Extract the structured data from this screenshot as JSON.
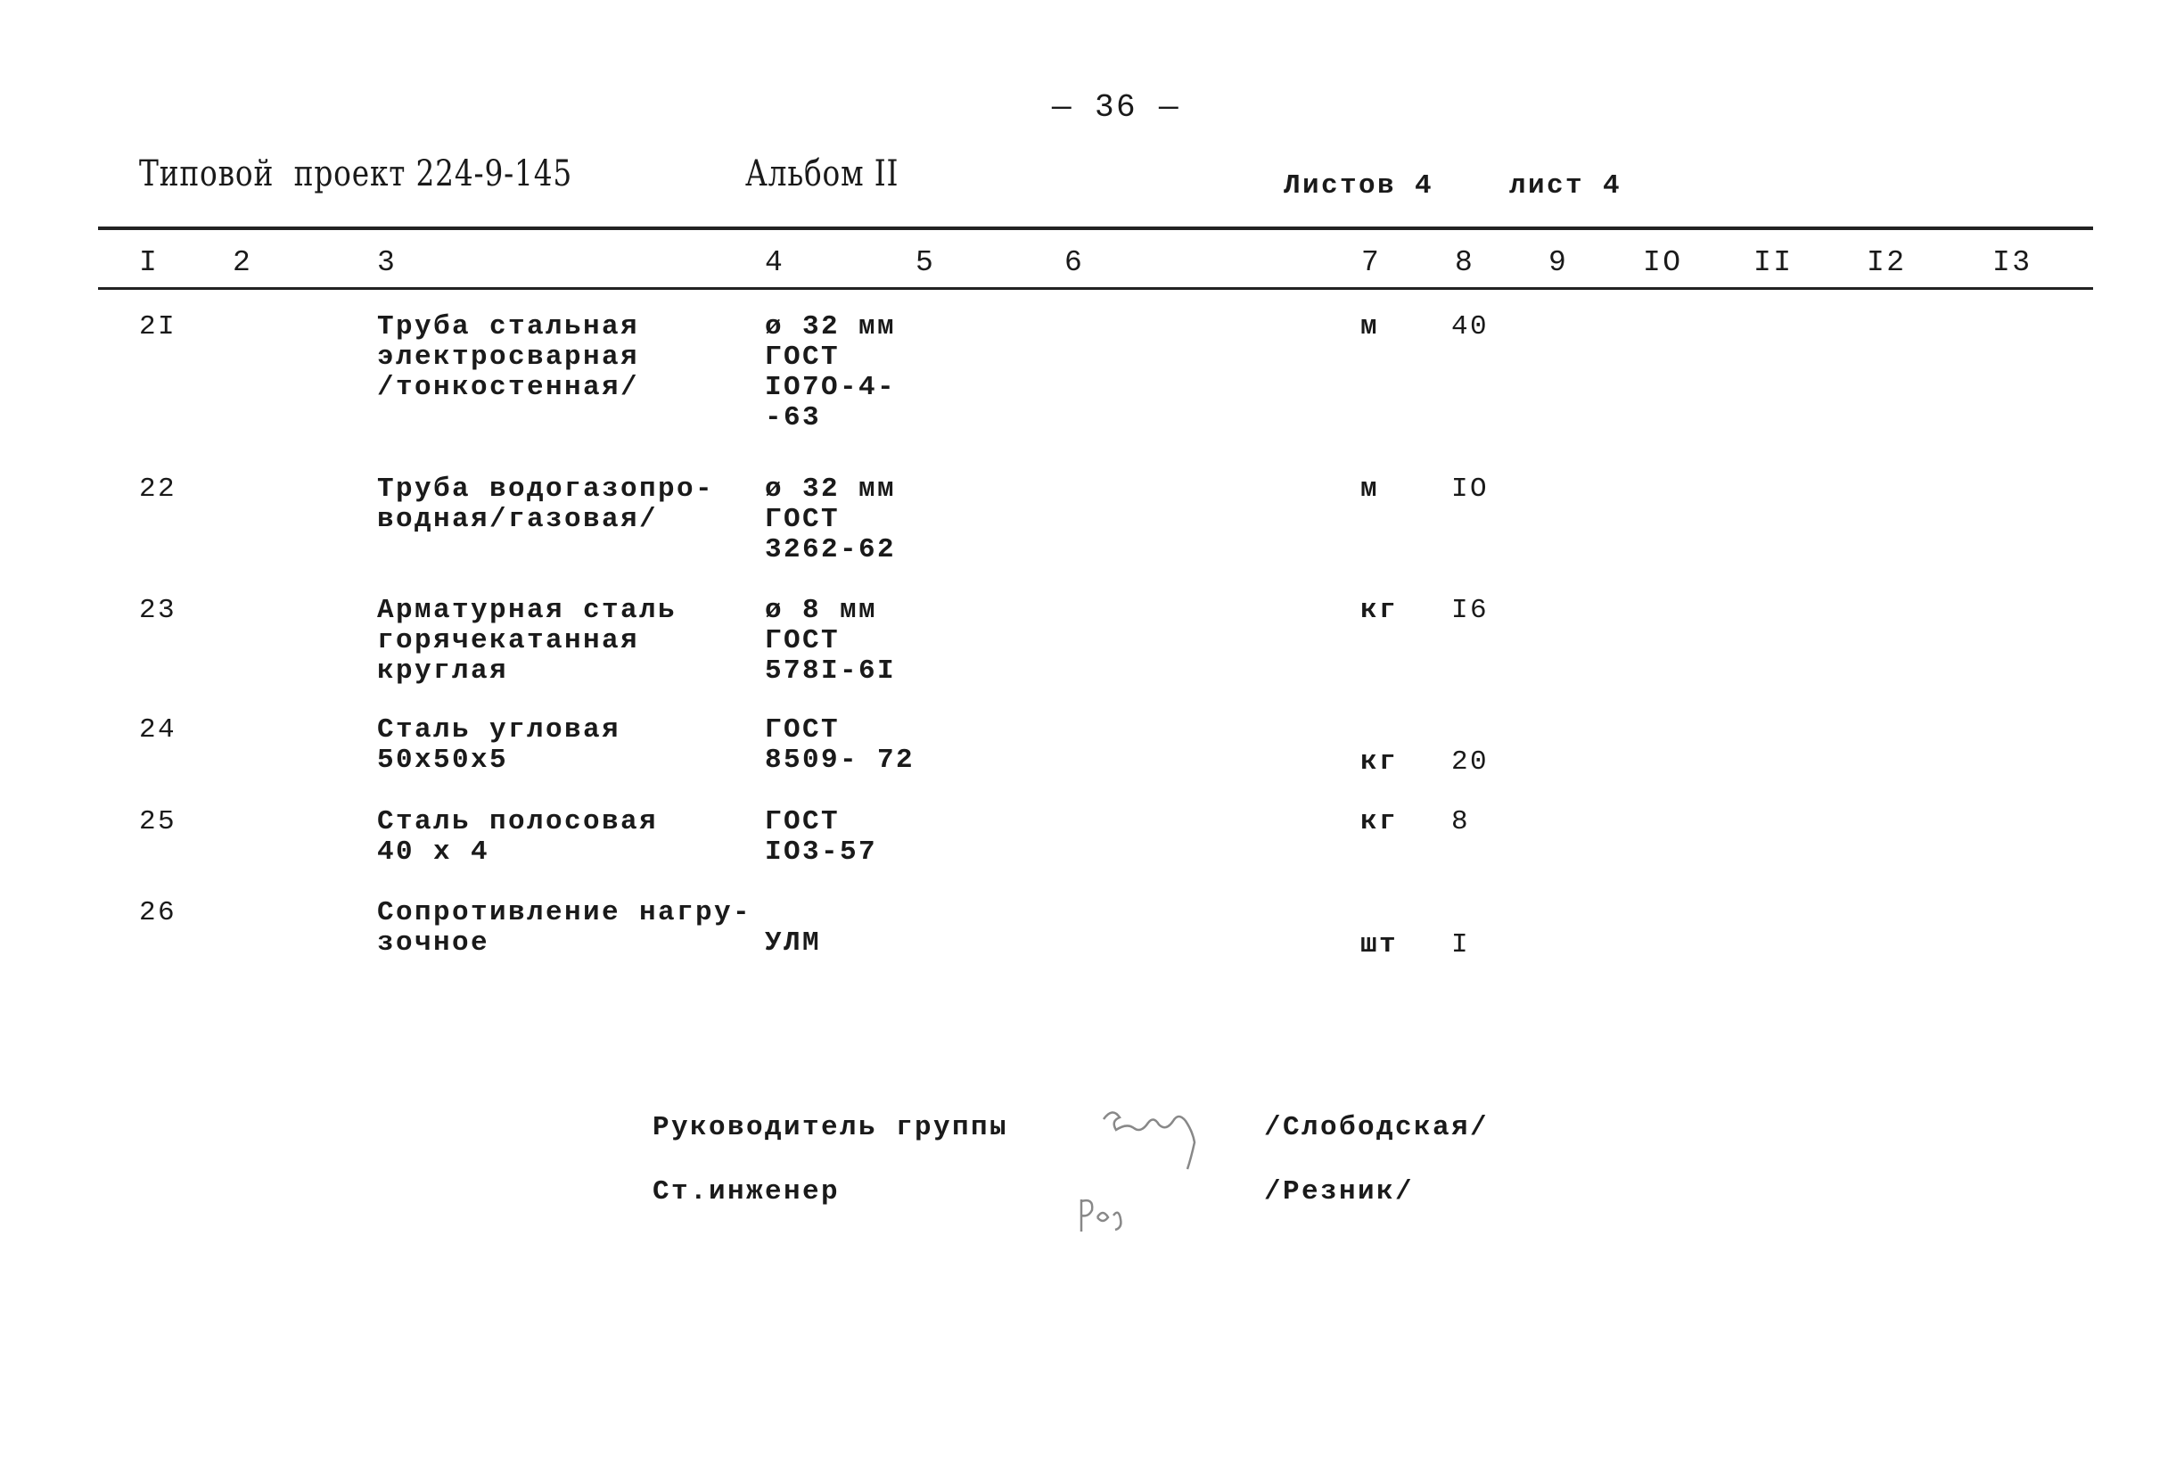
{
  "page_number": "— 36 —",
  "header": {
    "project": "Типовой  проект 224-9-145",
    "album": "Альбом II",
    "sheets_total": "Листов 4",
    "sheet": "лист 4"
  },
  "columns": [
    "I",
    "2",
    "3",
    "4",
    "5",
    "6",
    "7",
    "8",
    "9",
    "IO",
    "II",
    "I2",
    "I3"
  ],
  "rows": [
    {
      "no": "2I",
      "name": [
        "Труба стальная",
        "электросварная",
        "/тонкостенная/"
      ],
      "spec": [
        "ø 32 мм",
        "ГОСТ",
        "IO7O-4-",
        "-63"
      ],
      "unit": "м",
      "qty": "40"
    },
    {
      "no": "22",
      "name": [
        "Труба водогазопро-",
        "водная/газовая/"
      ],
      "spec": [
        "ø 32 мм",
        "ГОСТ",
        "3262-62"
      ],
      "unit": "м",
      "qty": "IO"
    },
    {
      "no": "23",
      "name": [
        "Арматурная сталь",
        "горячекатанная",
        "круглая"
      ],
      "spec": [
        "ø 8 мм",
        "ГОСТ",
        "578I-6I"
      ],
      "unit": "кг",
      "qty": "I6"
    },
    {
      "no": "24",
      "name": [
        "Сталь угловая",
        "50x50x5"
      ],
      "spec": [
        "ГОСТ",
        "8509- 72"
      ],
      "unit": "кг",
      "qty": "20"
    },
    {
      "no": "25",
      "name": [
        "Сталь полосовая",
        "40 x 4"
      ],
      "spec": [
        "ГОСТ",
        "IO3-57"
      ],
      "unit": "кг",
      "qty": "8"
    },
    {
      "no": "26",
      "name": [
        "Сопротивление нагру-",
        "зочное"
      ],
      "spec": [
        "",
        "УЛМ"
      ],
      "unit": "шт",
      "qty": "I"
    }
  ],
  "signatures": [
    {
      "role": "Руководитель группы",
      "name": "/Слободская/"
    },
    {
      "role": "Ст.инженер",
      "name": "/Резник/"
    }
  ]
}
